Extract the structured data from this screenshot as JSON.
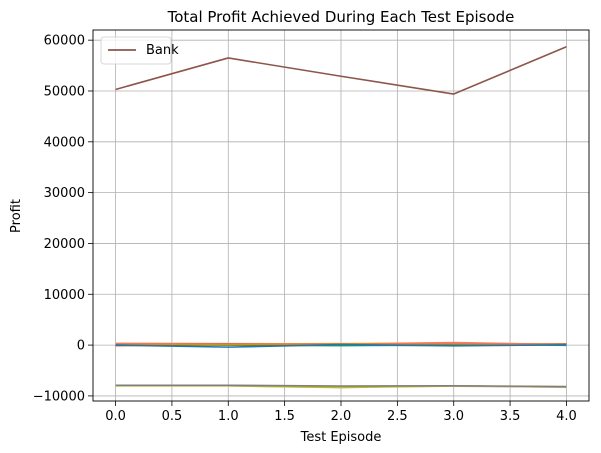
{
  "chart_data": {
    "type": "line",
    "title": "Total Profit Achieved During Each Test Episode",
    "xlabel": "Test Episode",
    "ylabel": "Profit",
    "xlim": [
      -0.2,
      4.2
    ],
    "ylim": [
      -11000,
      62000
    ],
    "xticks": [
      "0.0",
      "0.5",
      "1.0",
      "1.5",
      "2.0",
      "2.5",
      "3.0",
      "3.5",
      "4.0"
    ],
    "yticks": [
      "−10000",
      "0",
      "10000",
      "20000",
      "30000",
      "40000",
      "50000",
      "60000"
    ],
    "grid": true,
    "legend_position": "top-left",
    "series": [
      {
        "name": "Bank",
        "color": "#8c564b",
        "x": [
          0,
          1,
          2,
          3,
          4
        ],
        "y": [
          50300,
          56500,
          52900,
          49400,
          58700
        ]
      },
      {
        "name": "",
        "color": "#1f77b4",
        "x": [
          0,
          1,
          2,
          3,
          4
        ],
        "y": [
          0,
          -400,
          100,
          -150,
          50
        ]
      },
      {
        "name": "",
        "color": "#ff7f0e",
        "x": [
          0,
          1,
          2,
          3,
          4
        ],
        "y": [
          200,
          150,
          250,
          300,
          100
        ]
      },
      {
        "name": "",
        "color": "#2ca02c",
        "x": [
          0,
          1,
          2,
          3,
          4
        ],
        "y": [
          100,
          0,
          -100,
          200,
          -50
        ]
      },
      {
        "name": "",
        "color": "#d62728",
        "x": [
          0,
          1,
          2,
          3,
          4
        ],
        "y": [
          -100,
          100,
          0,
          100,
          200
        ]
      },
      {
        "name": "",
        "color": "#9467bd",
        "x": [
          0,
          1,
          2,
          3,
          4
        ],
        "y": [
          150,
          250,
          100,
          200,
          100
        ]
      },
      {
        "name": "",
        "color": "#e377c2",
        "x": [
          0,
          1,
          2,
          3,
          4
        ],
        "y": [
          300,
          250,
          200,
          500,
          100
        ]
      },
      {
        "name": "",
        "color": "#17becf",
        "x": [
          0,
          1,
          2,
          3,
          4
        ],
        "y": [
          0,
          100,
          -100,
          0,
          50
        ]
      },
      {
        "name": "",
        "color": "#aec7e8",
        "x": [
          0,
          1,
          2,
          3,
          4
        ],
        "y": [
          250,
          150,
          300,
          150,
          200
        ]
      },
      {
        "name": "",
        "color": "#ffbb78",
        "x": [
          0,
          1,
          2,
          3,
          4
        ],
        "y": [
          350,
          300,
          200,
          400,
          150
        ]
      },
      {
        "name": "",
        "color": "#7f7f7f",
        "x": [
          0,
          1,
          2,
          3,
          4
        ],
        "y": [
          -7900,
          -7900,
          -8050,
          -8000,
          -8150
        ]
      },
      {
        "name": "",
        "color": "#bcbd22",
        "x": [
          0,
          1,
          2,
          3,
          4
        ],
        "y": [
          -8000,
          -8000,
          -8350,
          -8050,
          -8200
        ]
      },
      {
        "name": "",
        "color": "#c49c94",
        "x": [
          0,
          1,
          2,
          3,
          4
        ],
        "y": [
          -7950,
          -7950,
          -8200,
          -8100,
          -8250
        ]
      },
      {
        "name": "",
        "color": "#c7c7c7",
        "x": [
          0,
          1,
          2,
          3,
          4
        ],
        "y": [
          -8050,
          -8050,
          -8300,
          -8000,
          -8300
        ]
      }
    ]
  }
}
